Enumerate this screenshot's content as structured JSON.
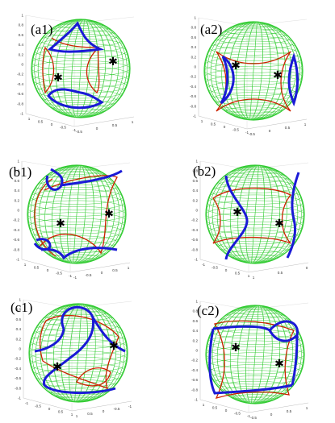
{
  "panels": [
    {
      "label": "(a1)",
      "yticks": [
        "1",
        "0.8",
        "0.6",
        "0.4",
        "0.2",
        "0",
        "-0.2",
        "-0.4",
        "-0.6",
        "-0.8",
        "-1"
      ],
      "xticks_left": [
        "1",
        "0.5",
        "0",
        "-0.5",
        "-1"
      ],
      "xticks_right": [
        "-0.5",
        "0",
        "0.5",
        "1"
      ]
    },
    {
      "label": "(a2)",
      "yticks": [
        "1",
        "0.8",
        "0.6",
        "0.4",
        "0.2",
        "0",
        "-0.2",
        "-0.4",
        "-0.6",
        "-0.8",
        "-1"
      ],
      "xticks_left": [
        "1",
        "0.5",
        "0",
        "-0.5",
        "-1"
      ],
      "xticks_right": [
        "-0.5",
        "0",
        "0.5",
        "1"
      ]
    },
    {
      "label": "(b1)",
      "yticks": [
        "1",
        "0.8",
        "0.6",
        "0.4",
        "0.2",
        "0",
        "-0.2",
        "-0.4",
        "-0.6",
        "-0.8",
        "-1"
      ],
      "xticks_left": [
        "1",
        "0.5",
        "0",
        "-0.5",
        "-1"
      ],
      "xticks_right": [
        "-1",
        "-0.5",
        "0",
        "0.5",
        "1"
      ]
    },
    {
      "label": "(b2)",
      "yticks": [
        "1",
        "0.8",
        "0.6",
        "0.4",
        "0.2",
        "0",
        "-0.2",
        "-0.4",
        "-0.6",
        "-0.8",
        "-1"
      ],
      "xticks_left": [
        "-1",
        "-0.5",
        "0",
        "0.5",
        "1"
      ],
      "xticks_right": [
        "1",
        "0.5",
        "0"
      ]
    },
    {
      "label": "(c1)",
      "yticks": [
        "1",
        "0.8",
        "0.6",
        "0.4",
        "0.2",
        "0",
        "-0.2",
        "-0.4",
        "-0.6",
        "-0.8",
        "-1"
      ],
      "xticks_left": [
        "-1",
        "-0.5",
        "0",
        "0.5",
        "1"
      ],
      "xticks_right": [
        "1",
        "0.5",
        "0",
        "-0.5",
        "-1"
      ]
    },
    {
      "label": "(c2)",
      "yticks": [
        "1",
        "0.8",
        "0.6",
        "0.4",
        "0.2",
        "0",
        "-0.2",
        "-0.4",
        "-0.6",
        "-0.8",
        "-1"
      ],
      "xticks_left": [
        "1",
        "0.5",
        "0",
        "-0.5",
        "-1"
      ],
      "xticks_right": [
        "-0.5",
        "0",
        "0.5",
        "1"
      ]
    }
  ],
  "colors": {
    "sphere_grid": "#33cc33",
    "curve_blue": "#1a1ad6",
    "curve_red": "#cc2200",
    "marker": "#000000",
    "axis_box": "#bdbdbd"
  },
  "icons": {
    "marker": "star-marker"
  }
}
